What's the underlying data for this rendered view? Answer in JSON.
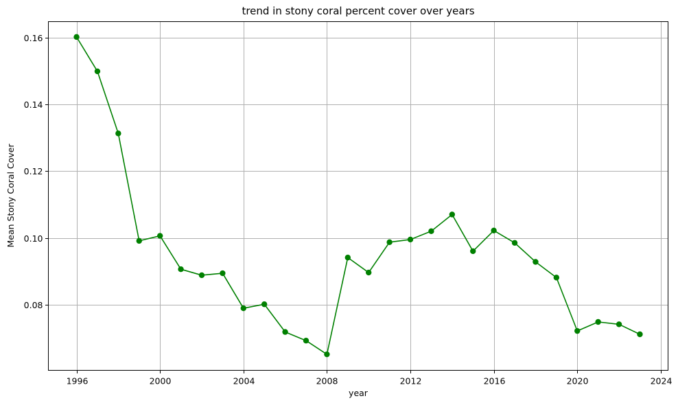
{
  "chart_data": {
    "type": "line",
    "title": "trend in stony coral percent cover over years",
    "xlabel": "year",
    "ylabel": "Mean Stony Coral Cover",
    "xlim": [
      1994.65,
      2024.35
    ],
    "ylim": [
      0.0603,
      0.1648
    ],
    "xticks": [
      1996,
      2000,
      2004,
      2008,
      2012,
      2016,
      2020,
      2024
    ],
    "yticks": [
      0.08,
      0.1,
      0.12,
      0.14,
      0.16
    ],
    "ytick_labels": [
      "0.08",
      "0.10",
      "0.12",
      "0.14",
      "0.16"
    ],
    "grid": true,
    "marker": "circle",
    "series": [
      {
        "color": "#008000",
        "x": [
          1996,
          1997,
          1998,
          1999,
          2000,
          2001,
          2002,
          2003,
          2004,
          2005,
          2006,
          2007,
          2008,
          2009,
          2010,
          2011,
          2012,
          2013,
          2014,
          2015,
          2016,
          2017,
          2018,
          2019,
          2020,
          2021,
          2022,
          2023
        ],
        "y": [
          0.1602,
          0.1499,
          0.1313,
          0.0991,
          0.1006,
          0.0906,
          0.0888,
          0.0894,
          0.0789,
          0.0801,
          0.0718,
          0.0692,
          0.0651,
          0.0941,
          0.0896,
          0.0987,
          0.0995,
          0.102,
          0.107,
          0.096,
          0.1022,
          0.0985,
          0.0928,
          0.0881,
          0.0721,
          0.0748,
          0.0741,
          0.0711
        ]
      }
    ]
  }
}
